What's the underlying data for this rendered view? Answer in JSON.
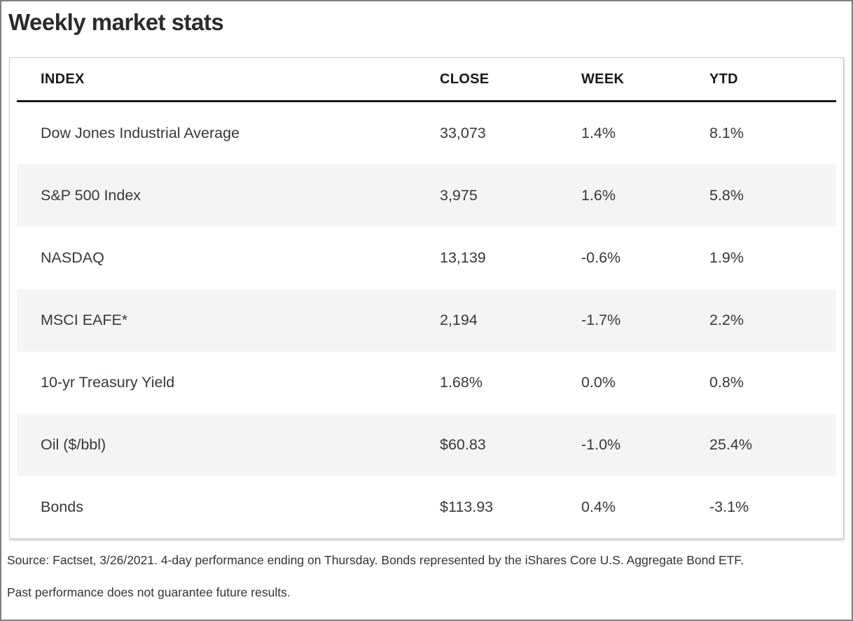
{
  "chart_data": {
    "type": "table",
    "title": "Weekly market stats",
    "columns": [
      "INDEX",
      "CLOSE",
      "WEEK",
      "YTD"
    ],
    "rows": [
      {
        "index": "Dow Jones Industrial Average",
        "close": "33,073",
        "week": "1.4%",
        "ytd": "8.1%"
      },
      {
        "index": "S&P 500 Index",
        "close": "3,975",
        "week": "1.6%",
        "ytd": "5.8%"
      },
      {
        "index": "NASDAQ",
        "close": "13,139",
        "week": "-0.6%",
        "ytd": "1.9%"
      },
      {
        "index": "MSCI EAFE*",
        "close": "2,194",
        "week": "-1.7%",
        "ytd": "2.2%"
      },
      {
        "index": "10-yr Treasury Yield",
        "close": "1.68%",
        "week": "0.0%",
        "ytd": "0.8%"
      },
      {
        "index": "Oil ($/bbl)",
        "close": "$60.83",
        "week": "-1.0%",
        "ytd": "25.4%"
      },
      {
        "index": "Bonds",
        "close": "$113.93",
        "week": "0.4%",
        "ytd": "-3.1%"
      }
    ],
    "layout": {
      "stripe_rows": "even",
      "header_rule": true
    }
  },
  "footnotes": {
    "line1": "Source: Factset, 3/26/2021. 4-day performance ending on Thursday. Bonds represented by the iShares Core U.S. Aggregate Bond ETF.",
    "line2": "Past performance does not guarantee future results."
  },
  "colors": {
    "title_text": "#2b2b2b",
    "header_text": "#1a1a1a",
    "body_text": "#36383c",
    "stripe": "#f4f4f4",
    "header_rule": "#1a1a1a",
    "card_border": "#c9c9c9",
    "outer_border": "#7f7f7f"
  }
}
